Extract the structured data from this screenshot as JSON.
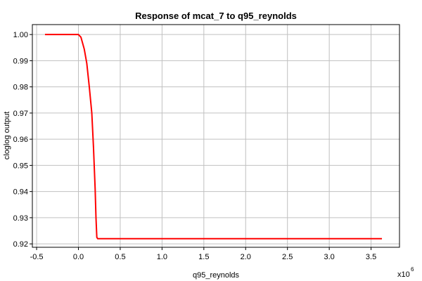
{
  "chart_data": {
    "type": "line",
    "title": "Response of mcat_7 to q95_reynolds",
    "x_label": "q95_reynolds",
    "y_label": "cloglog output",
    "x_multiplier": {
      "base": "x10",
      "exponent": "6"
    },
    "x": [
      -0.4,
      0.0,
      0.03,
      0.07,
      0.1,
      0.13,
      0.16,
      0.18,
      0.2,
      0.21,
      0.22,
      0.23,
      3.63
    ],
    "series": [
      {
        "name": "cloglog output",
        "color": "#ff0000",
        "values": [
          1.0,
          1.0,
          0.999,
          0.9944,
          0.989,
          0.98,
          0.97,
          0.957,
          0.941,
          0.93,
          0.9225,
          0.922,
          0.922
        ]
      }
    ],
    "xlim": [
      -0.551,
      3.84
    ],
    "ylim": [
      0.9187,
      1.0038
    ],
    "xticks": [
      -0.5,
      {
        "value": 0,
        "label": "0.0"
      },
      0.5,
      {
        "value": 1,
        "label": "1.0"
      },
      1.5,
      {
        "value": 2,
        "label": "2.0"
      },
      2.5,
      {
        "value": 3,
        "label": "3.0"
      },
      3.5
    ],
    "yticks": [
      0.92,
      0.93,
      0.94,
      0.95,
      0.96,
      0.97,
      0.98,
      0.99,
      {
        "value": 1,
        "label": "1.00"
      }
    ],
    "grid": true
  }
}
